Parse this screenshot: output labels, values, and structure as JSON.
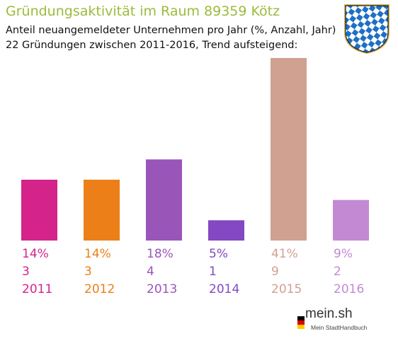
{
  "header": {
    "title": "Gründungsaktivität im Raum 89359 Kötz",
    "subtitle_line1": "Anteil neuangemeldeter Unternehmen pro Jahr (%, Anzahl, Jahr)",
    "subtitle_line2": "22 Gründungen zwischen 2011-2016, Trend aufsteigend:"
  },
  "crest": {
    "icon": "bavarian-lozenge-crest-icon",
    "colors": [
      "#1e6fc6",
      "#ffffff",
      "#d4b85a"
    ]
  },
  "logo": {
    "text": "mein.sh",
    "subtext": "Mein StadtHandbuch",
    "icon": "germany-flag-icon",
    "flag_colors": [
      "#000000",
      "#dd0000",
      "#ffce00"
    ]
  },
  "chart_data": {
    "type": "bar",
    "categories": [
      "2011",
      "2012",
      "2013",
      "2014",
      "2015",
      "2016"
    ],
    "percent_labels": [
      "14%",
      "14%",
      "18%",
      "5%",
      "41%",
      "9%"
    ],
    "counts": [
      3,
      3,
      4,
      1,
      9,
      2
    ],
    "colors": [
      "#d4248c",
      "#ec7f17",
      "#9a55b9",
      "#8348c2",
      "#d0a090",
      "#c38ad3"
    ],
    "ylim": [
      0,
      9
    ],
    "grid": false,
    "legend": "none"
  }
}
